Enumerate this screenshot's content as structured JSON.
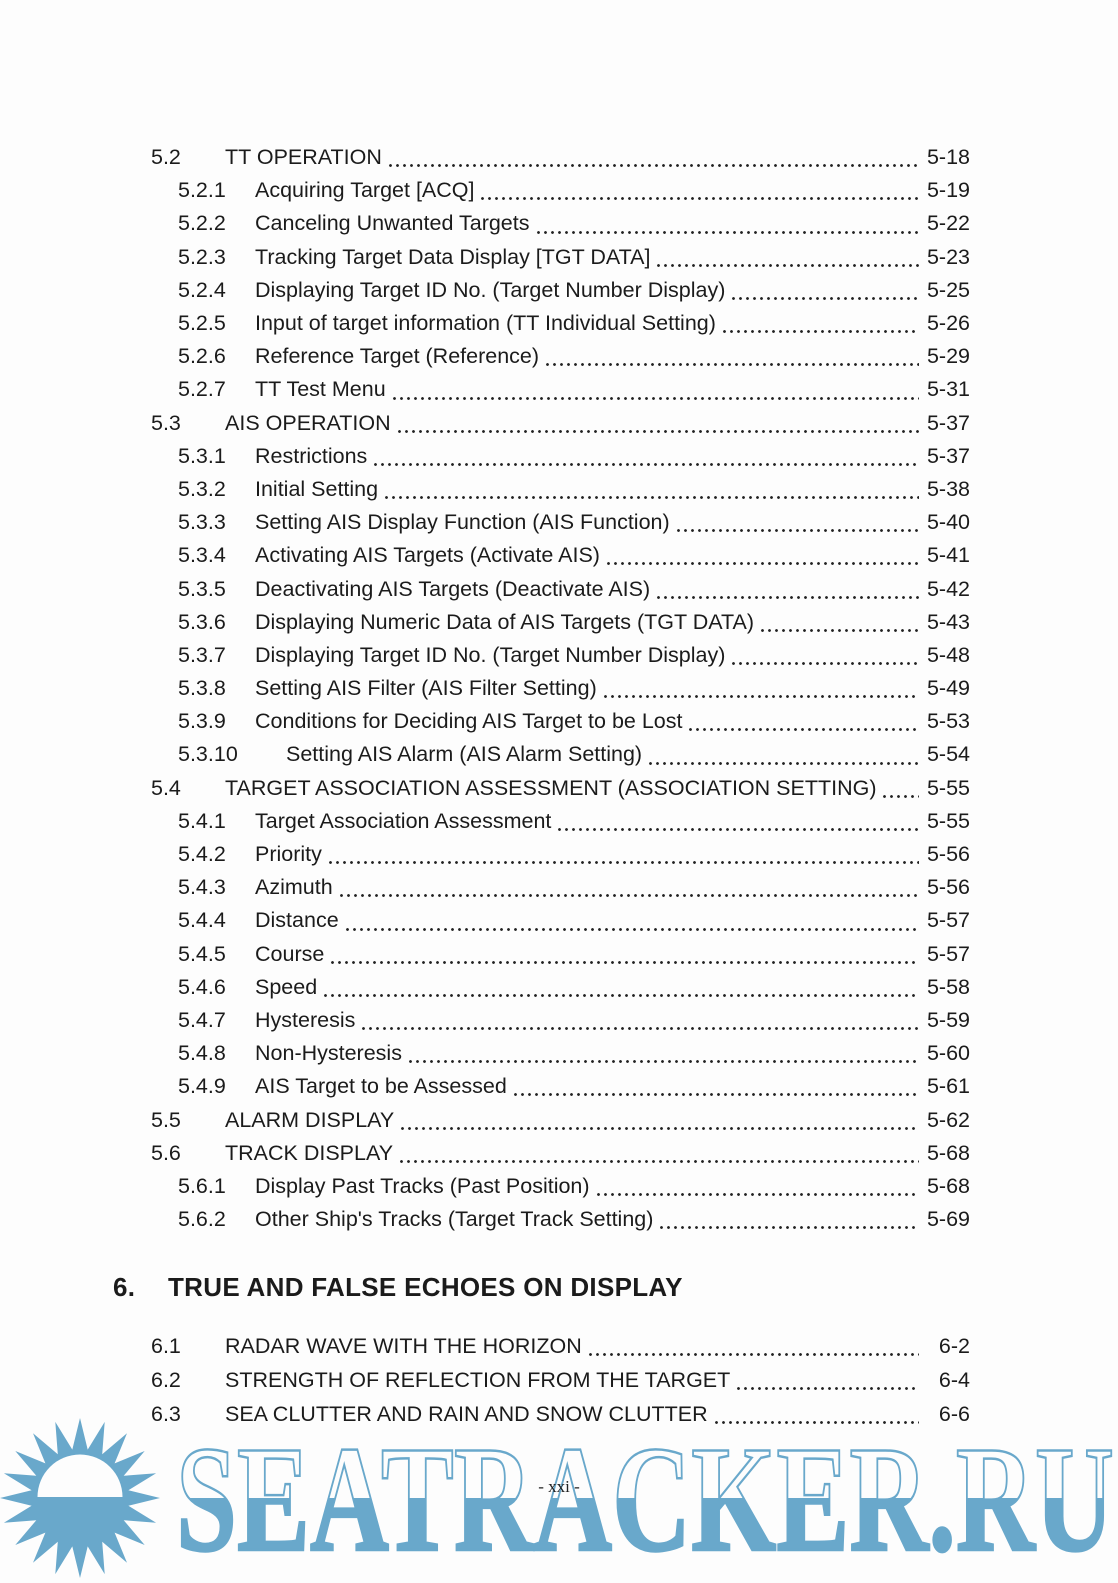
{
  "document": {
    "footer": {
      "page_label": "- xxi -"
    },
    "watermark": {
      "text": "SEATRACKER.RU",
      "color": "#69a8cb",
      "icon": "sun"
    }
  },
  "toc": {
    "chapter5": {
      "entries": [
        {
          "num": "5.2",
          "title": "TT OPERATION",
          "page": "5-18",
          "level": 1
        },
        {
          "num": "5.2.1",
          "title": "Acquiring Target [ACQ]",
          "page": "5-19",
          "level": 2
        },
        {
          "num": "5.2.2",
          "title": "Canceling Unwanted Targets",
          "page": "5-22",
          "level": 2
        },
        {
          "num": "5.2.3",
          "title": "Tracking Target Data Display [TGT DATA]",
          "page": "5-23",
          "level": 2
        },
        {
          "num": "5.2.4",
          "title": "Displaying Target ID No. (Target Number Display)",
          "page": "5-25",
          "level": 2
        },
        {
          "num": "5.2.5",
          "title": "Input of target information (TT Individual Setting)",
          "page": "5-26",
          "level": 2
        },
        {
          "num": "5.2.6",
          "title": "Reference Target (Reference)",
          "page": "5-29",
          "level": 2
        },
        {
          "num": "5.2.7",
          "title": "TT Test Menu",
          "page": "5-31",
          "level": 2
        },
        {
          "num": "5.3",
          "title": "AIS OPERATION",
          "page": "5-37",
          "level": 1
        },
        {
          "num": "5.3.1",
          "title": "Restrictions",
          "page": "5-37",
          "level": 2
        },
        {
          "num": "5.3.2",
          "title": "Initial Setting",
          "page": "5-38",
          "level": 2
        },
        {
          "num": "5.3.3",
          "title": "Setting AIS Display Function (AIS Function)",
          "page": "5-40",
          "level": 2
        },
        {
          "num": "5.3.4",
          "title": "Activating AIS Targets (Activate AIS)",
          "page": "5-41",
          "level": 2
        },
        {
          "num": "5.3.5",
          "title": "Deactivating AIS Targets (Deactivate AIS)",
          "page": "5-42",
          "level": 2
        },
        {
          "num": "5.3.6",
          "title": "Displaying Numeric Data of AIS Targets (TGT DATA)",
          "page": "5-43",
          "level": 2
        },
        {
          "num": "5.3.7",
          "title": "Displaying Target ID No. (Target Number Display)",
          "page": "5-48",
          "level": 2
        },
        {
          "num": "5.3.8",
          "title": "Setting AIS Filter (AIS Filter Setting)",
          "page": "5-49",
          "level": 2
        },
        {
          "num": "5.3.9",
          "title": "Conditions for Deciding AIS Target to be Lost",
          "page": "5-53",
          "level": 2
        },
        {
          "num": "5.3.10",
          "title": "Setting AIS Alarm (AIS Alarm Setting)",
          "page": "5-54",
          "level": 2
        },
        {
          "num": "5.4",
          "title": "TARGET ASSOCIATION ASSESSMENT (ASSOCIATION SETTING)",
          "page": "5-55",
          "level": 1
        },
        {
          "num": "5.4.1",
          "title": "Target Association Assessment",
          "page": "5-55",
          "level": 2
        },
        {
          "num": "5.4.2",
          "title": "Priority",
          "page": "5-56",
          "level": 2
        },
        {
          "num": "5.4.3",
          "title": "Azimuth",
          "page": "5-56",
          "level": 2
        },
        {
          "num": "5.4.4",
          "title": "Distance",
          "page": "5-57",
          "level": 2
        },
        {
          "num": "5.4.5",
          "title": "Course",
          "page": "5-57",
          "level": 2
        },
        {
          "num": "5.4.6",
          "title": "Speed",
          "page": "5-58",
          "level": 2
        },
        {
          "num": "5.4.7",
          "title": "Hysteresis",
          "page": "5-59",
          "level": 2
        },
        {
          "num": "5.4.8",
          "title": "Non-Hysteresis",
          "page": "5-60",
          "level": 2
        },
        {
          "num": "5.4.9",
          "title": "AIS Target to be Assessed",
          "page": "5-61",
          "level": 2
        },
        {
          "num": "5.5",
          "title": "ALARM DISPLAY",
          "page": "5-62",
          "level": 1
        },
        {
          "num": "5.6",
          "title": "TRACK DISPLAY",
          "page": "5-68",
          "level": 1
        },
        {
          "num": "5.6.1",
          "title": "Display Past Tracks (Past Position)",
          "page": "5-68",
          "level": 2
        },
        {
          "num": "5.6.2",
          "title": "Other Ship's Tracks (Target Track Setting)",
          "page": "5-69",
          "level": 2
        }
      ]
    },
    "chapter6": {
      "heading": {
        "num": "6.",
        "title": "TRUE AND FALSE ECHOES ON DISPLAY"
      },
      "entries": [
        {
          "num": "6.1",
          "title": "RADAR WAVE WITH THE HORIZON",
          "page": "6-2",
          "level": 1
        },
        {
          "num": "6.2",
          "title": "STRENGTH OF REFLECTION FROM THE TARGET",
          "page": "6-4",
          "level": 1
        },
        {
          "num": "6.3",
          "title": "SEA CLUTTER AND RAIN AND SNOW CLUTTER",
          "page": "6-6",
          "level": 1
        }
      ]
    }
  }
}
